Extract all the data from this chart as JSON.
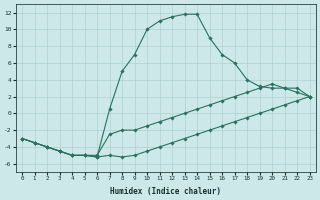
{
  "xlabel": "Humidex (Indice chaleur)",
  "ylabel": "",
  "bg_color": "#cce8e8",
  "grid_color": "#b0d0d0",
  "line_color": "#2a7060",
  "xlim": [
    -0.5,
    23.5
  ],
  "ylim": [
    -7,
    13
  ],
  "yticks": [
    -6,
    -4,
    -2,
    0,
    2,
    4,
    6,
    8,
    10,
    12
  ],
  "xticks": [
    0,
    1,
    2,
    3,
    4,
    5,
    6,
    7,
    8,
    9,
    10,
    11,
    12,
    13,
    14,
    15,
    16,
    17,
    18,
    19,
    20,
    21,
    22,
    23
  ],
  "line1_x": [
    0,
    1,
    2,
    3,
    4,
    5,
    6,
    7,
    8,
    9,
    10,
    11,
    12,
    13,
    14,
    15,
    16,
    17,
    18,
    19,
    20,
    21,
    22,
    23
  ],
  "line1_y": [
    -3,
    -3.5,
    -4,
    -4.5,
    -5,
    -5,
    -5.2,
    -5,
    -5.2,
    -5,
    -4.5,
    -4,
    -3.5,
    -3,
    -2.5,
    -2,
    -1.5,
    -1,
    -0.5,
    0,
    0.5,
    1,
    1.5,
    2
  ],
  "line2_x": [
    0,
    1,
    2,
    3,
    4,
    5,
    6,
    7,
    8,
    9,
    10,
    11,
    12,
    13,
    14,
    15,
    16,
    17,
    18,
    19,
    20,
    21,
    22,
    23
  ],
  "line2_y": [
    -3,
    -3.5,
    -4,
    -4.5,
    -5,
    -5,
    -5.2,
    0.5,
    5,
    7,
    10,
    11,
    11.5,
    11.8,
    11.8,
    9,
    7,
    6,
    4,
    3.2,
    3,
    3,
    2.5,
    2
  ],
  "line3_x": [
    0,
    1,
    2,
    3,
    4,
    5,
    6,
    7,
    8,
    9,
    10,
    11,
    12,
    13,
    14,
    15,
    16,
    17,
    18,
    19,
    20,
    21,
    22,
    23
  ],
  "line3_y": [
    -3,
    -3.5,
    -4,
    -4.5,
    -5,
    -5,
    -5,
    -2.5,
    -2,
    -2,
    -1.5,
    -1,
    -0.5,
    0,
    0.5,
    1,
    1.5,
    2,
    2.5,
    3,
    3.5,
    3,
    3,
    2
  ]
}
